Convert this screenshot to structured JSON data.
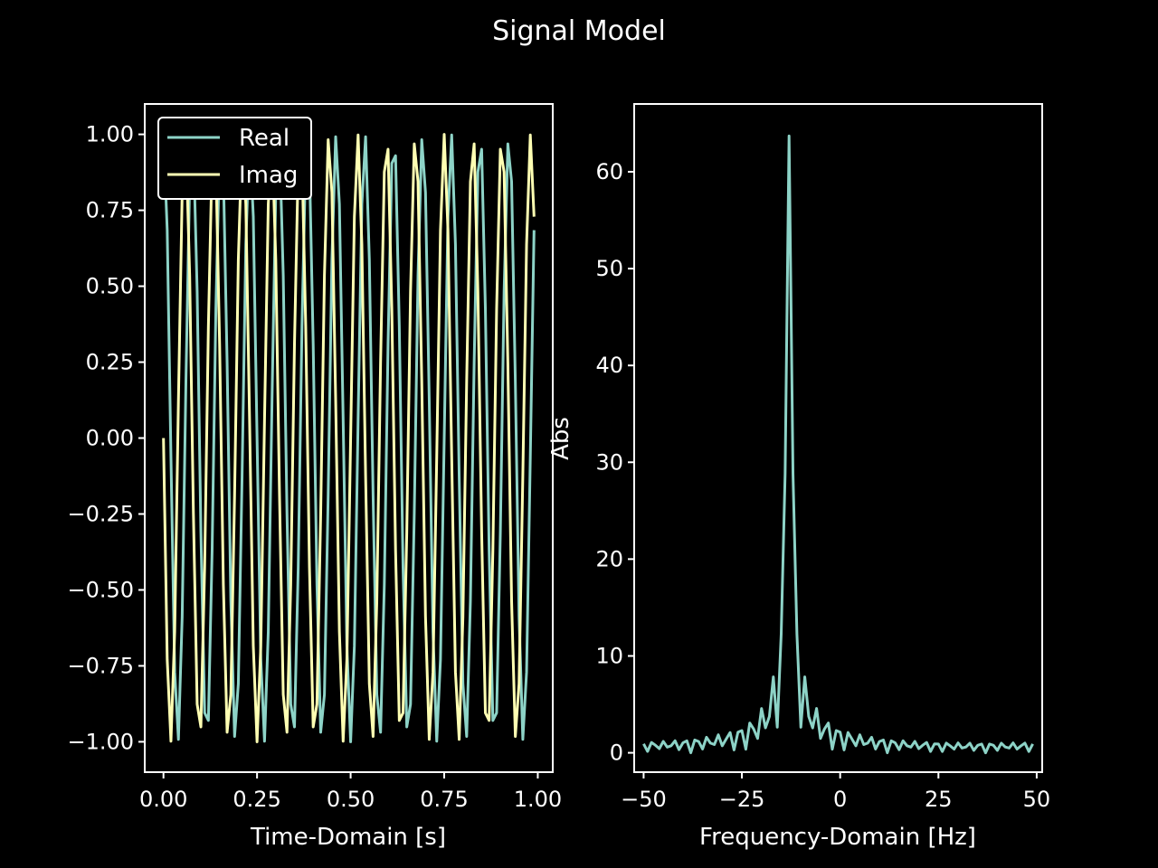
{
  "figure": {
    "title": "Signal Model",
    "background": "#000000",
    "foreground": "#ffffff"
  },
  "chart_data": [
    {
      "type": "line",
      "xlabel": "Time-Domain [s]",
      "ylabel": "",
      "xlim": [
        -0.05,
        1.04
      ],
      "ylim": [
        -1.1,
        1.1
      ],
      "xticks": [
        0.0,
        0.25,
        0.5,
        0.75,
        1.0
      ],
      "xtick_labels": [
        "0.00",
        "0.25",
        "0.50",
        "0.75",
        "1.00"
      ],
      "yticks": [
        1.0,
        0.75,
        0.5,
        0.25,
        0.0,
        -0.25,
        -0.5,
        -0.75,
        -1.0
      ],
      "ytick_labels": [
        "1.00",
        "0.75",
        "0.50",
        "0.25",
        "0.00",
        "−0.25",
        "−0.50",
        "−0.75",
        "−1.00"
      ],
      "legend_position": "top-left",
      "signal": {
        "frequency_hz": -13,
        "sample_rate_hz": 100,
        "samples": 100,
        "t_start": 0.0,
        "t_end": 0.99
      },
      "series": [
        {
          "name": "Real",
          "function": "cos(2*pi*f*t)",
          "color": "#8dd3c7"
        },
        {
          "name": "Imag",
          "function": "sin(2*pi*f*t)",
          "color": "#feffb3"
        }
      ]
    },
    {
      "type": "line",
      "xlabel": "Frequency-Domain [Hz]",
      "ylabel": "Abs",
      "xlim": [
        -52.4,
        51.4
      ],
      "ylim": [
        -2.0,
        67.0
      ],
      "xticks": [
        -50,
        -25,
        0,
        25,
        50
      ],
      "xtick_labels": [
        "−50",
        "−25",
        "0",
        "25",
        "50"
      ],
      "yticks": [
        0,
        10,
        20,
        30,
        40,
        50,
        60
      ],
      "ytick_labels": [
        "0",
        "10",
        "20",
        "30",
        "40",
        "50",
        "60"
      ],
      "series": [
        {
          "name": "",
          "color": "#8dd3c7",
          "x_range": [
            -50,
            49
          ],
          "peak_x": -13,
          "peak_value": 63.7
        }
      ]
    }
  ]
}
